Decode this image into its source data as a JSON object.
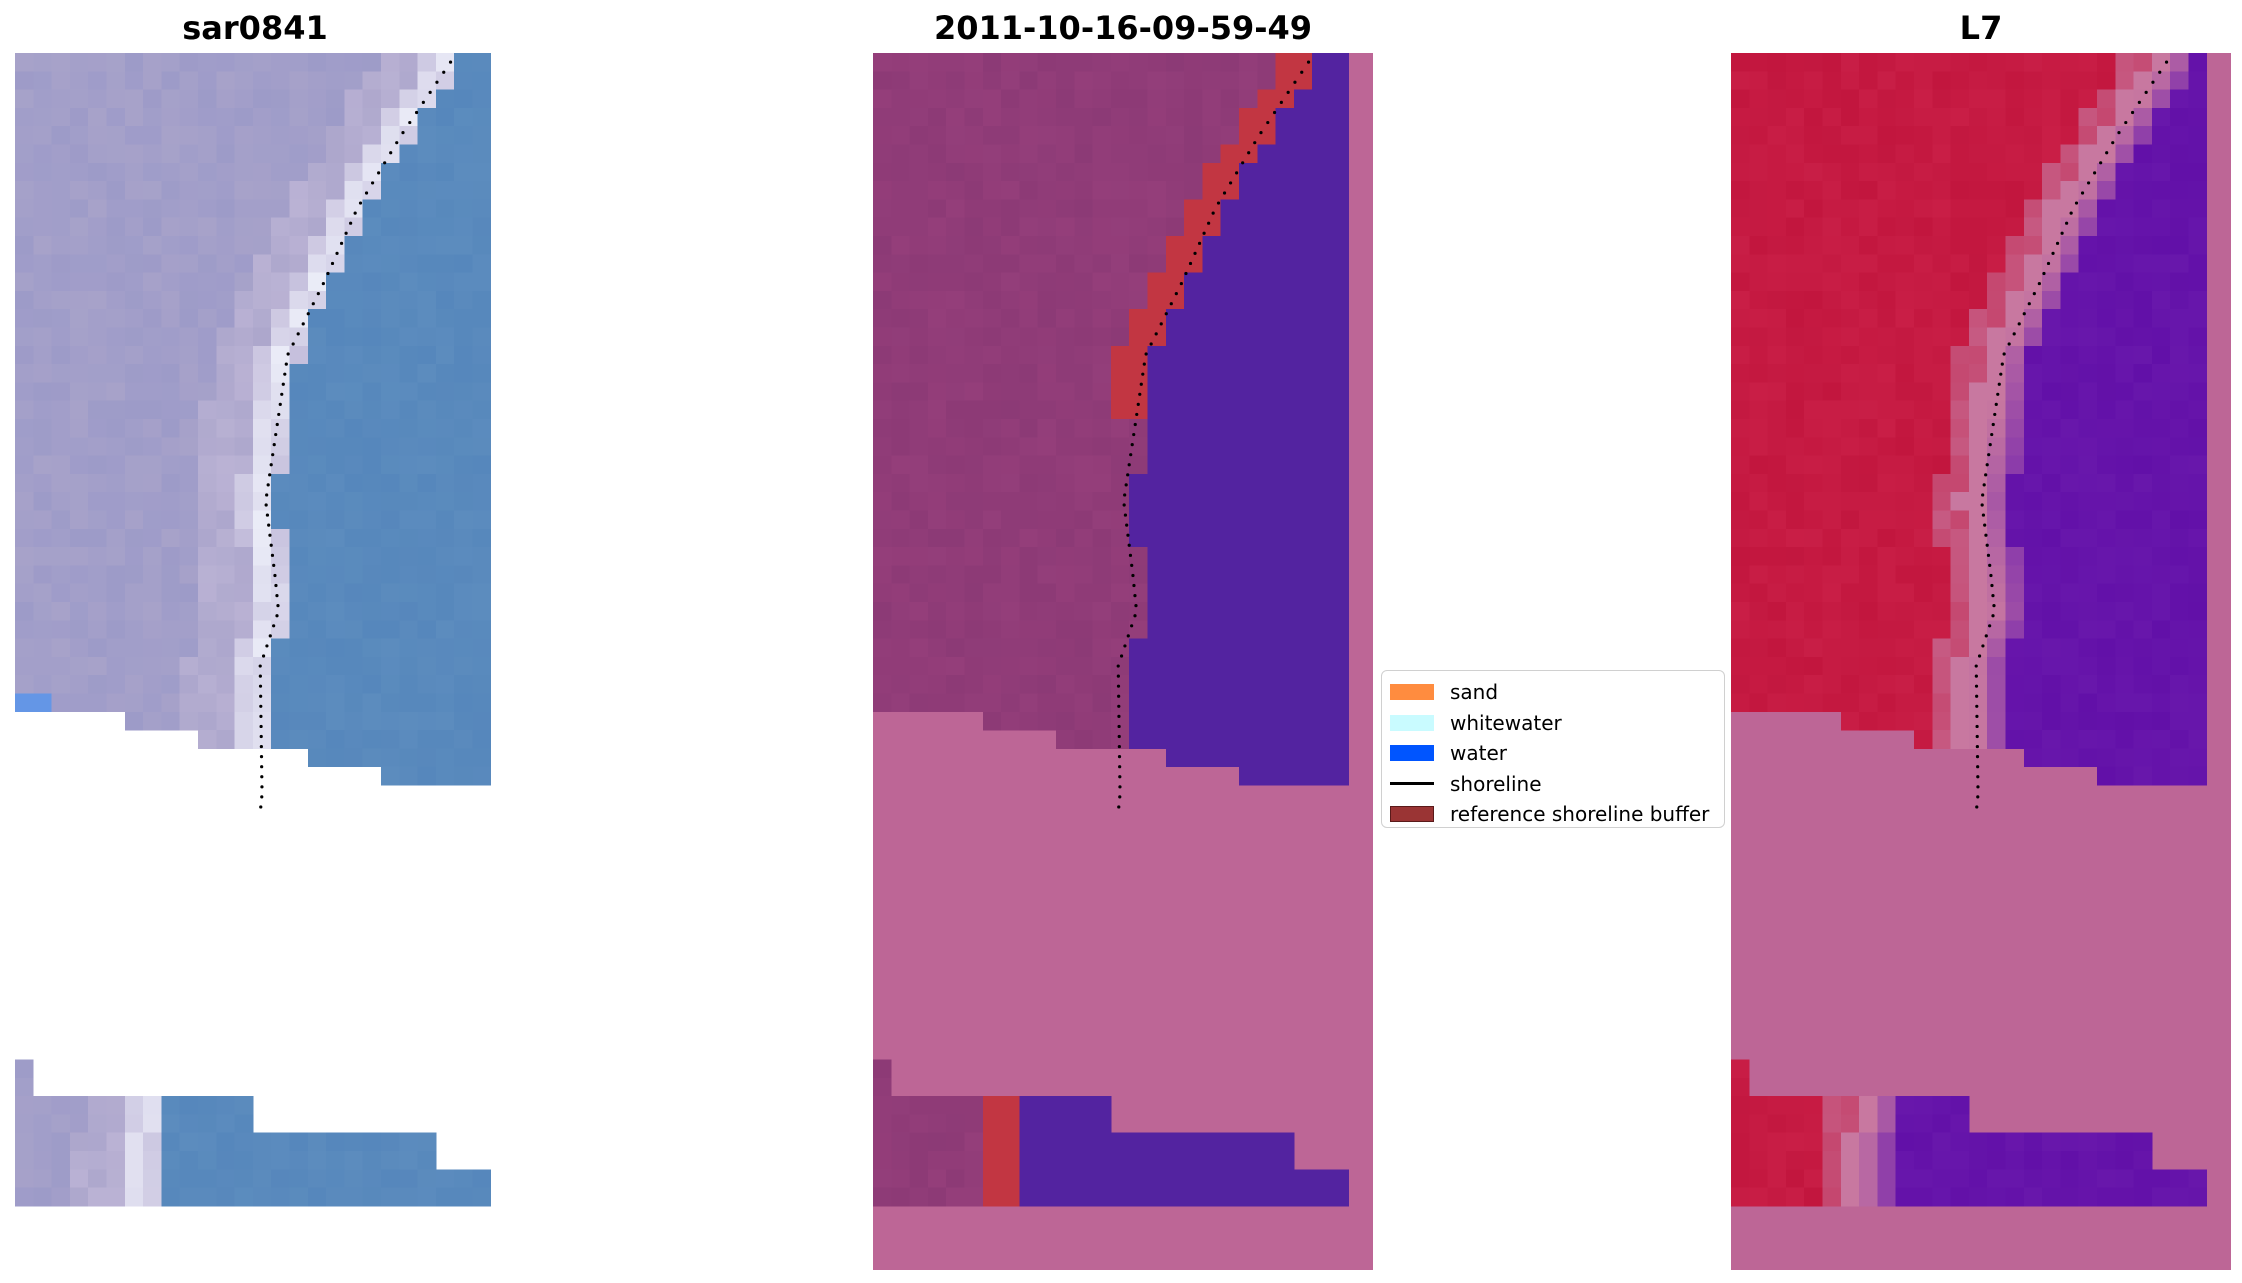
{
  "panels": [
    {
      "title": "sar0841",
      "style": "rgb"
    },
    {
      "title": "2011-10-16-09-59-49",
      "style": "classified"
    },
    {
      "title": "L7",
      "style": "index"
    }
  ],
  "legend": {
    "items": [
      {
        "label": "sand",
        "type": "patch",
        "color": "#ff8c3f"
      },
      {
        "label": "whitewater",
        "type": "patch",
        "color": "#c9fbff"
      },
      {
        "label": "water",
        "type": "patch",
        "color": "#0055ff"
      },
      {
        "label": "shoreline",
        "type": "line",
        "color": "#000000"
      },
      {
        "label": "reference shoreline buffer",
        "type": "patch",
        "color": "#9a3434"
      }
    ]
  },
  "colors": {
    "nodata_rgb": "#ffffff",
    "nodata_mask": "#bd6696",
    "land_class": "#943e7a",
    "water_class": "#5323a0",
    "buffer_class": "#c23642",
    "land_index": "#c2163e",
    "water_index": "#6210a8",
    "shoreline_dots": "#000000"
  }
}
